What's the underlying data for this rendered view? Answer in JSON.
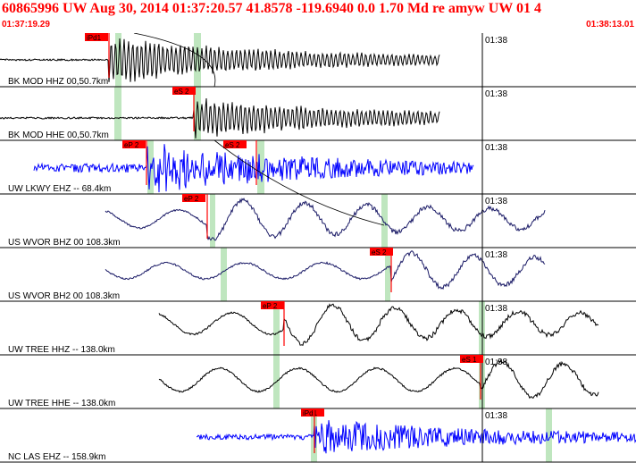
{
  "header": {
    "title": "60865996 UW Aug 30, 2014 01:37:20.57   41.8578 -119.6940  0.0 1.70 Md re amyw UW 01   4",
    "start_time": "01:37:19.29",
    "end_time": "01:38:13.01"
  },
  "colors": {
    "header_text": "#ff0000",
    "pick_flag": "#ff0000",
    "window": "#bfe6bf",
    "trace_black": "#000000",
    "trace_blue": "#0000ff",
    "trace_navy": "#1a1a66"
  },
  "chart_data": {
    "type": "line",
    "title": "",
    "xlabel": "",
    "ylabel": "",
    "x_range": [
      "01:37:19.29",
      "01:38:13.01"
    ],
    "time_tick_label": "01:38",
    "series": [
      {
        "name": "BK MOD HHZ 00,50.7km",
        "color": "#000000",
        "pick": "iPd1",
        "waveform": "impulsive"
      },
      {
        "name": "BK MOD HHE 00,50.7km",
        "color": "#000000",
        "pick": "eS 2",
        "waveform": "impulsive"
      },
      {
        "name": "UW LKWY EHZ -- 68.4km",
        "color": "#0000ff",
        "pick": "eP 2",
        "pick2": "eS 2",
        "waveform": "noisy"
      },
      {
        "name": "US WVOR BHZ 00 108.3km",
        "color": "#1a1a66",
        "pick": "eP 2",
        "waveform": "long-period"
      },
      {
        "name": "US WVOR BH2 00 108.3km",
        "color": "#1a1a66",
        "pick": "eS 2",
        "waveform": "long-period"
      },
      {
        "name": "UW TREE HHZ -- 138.0km",
        "color": "#000000",
        "pick": "eP 2",
        "waveform": "long-period"
      },
      {
        "name": "UW TREE HHE -- 138.0km",
        "color": "#000000",
        "pick": "eS 1",
        "waveform": "long-period"
      },
      {
        "name": "NC LAS EHZ -- 158.9km",
        "color": "#0000ff",
        "pick": "iPd1",
        "waveform": "noisy"
      }
    ]
  }
}
